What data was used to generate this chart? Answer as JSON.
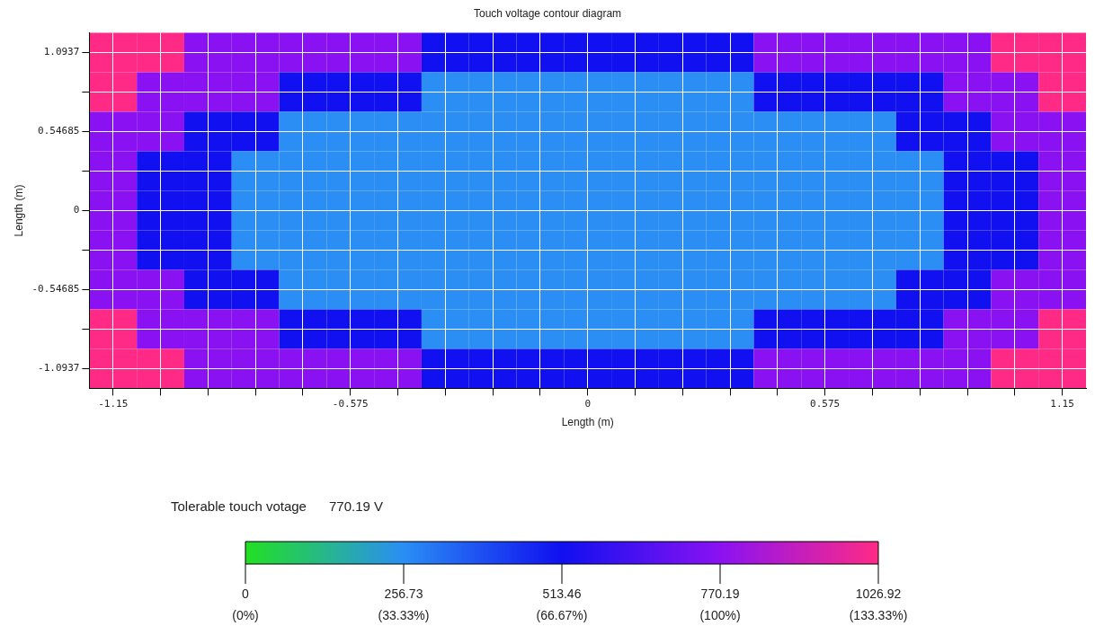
{
  "chart_data": {
    "type": "heatmap",
    "title": "Touch voltage contour diagram",
    "xlabel": "Length (m)",
    "ylabel": "Length (m)",
    "categories": [
      "-1.15",
      null,
      null,
      null,
      null,
      "-0.575",
      null,
      null,
      null,
      null,
      "0",
      null,
      null,
      null,
      null,
      "0.575",
      null,
      null,
      null,
      null,
      "1.15"
    ],
    "y_categories": [
      "1.0937",
      null,
      "0.54685",
      null,
      "0",
      null,
      "-0.54685",
      null,
      "-1.0937"
    ],
    "cells": [
      [
        1026.92,
        1026.92,
        770.19,
        770.19,
        770.19,
        770.19,
        770.19,
        513.46,
        513.46,
        513.46,
        513.46,
        513.46,
        513.46,
        513.46,
        770.19,
        770.19,
        770.19,
        770.19,
        770.19,
        1026.92,
        1026.92
      ],
      [
        1026.92,
        770.19,
        770.19,
        770.19,
        513.46,
        513.46,
        513.46,
        256.73,
        256.73,
        256.73,
        256.73,
        256.73,
        256.73,
        256.73,
        513.46,
        513.46,
        513.46,
        513.46,
        770.19,
        770.19,
        1026.92
      ],
      [
        770.19,
        770.19,
        513.46,
        513.46,
        256.73,
        256.73,
        256.73,
        256.73,
        256.73,
        256.73,
        256.73,
        256.73,
        256.73,
        256.73,
        256.73,
        256.73,
        256.73,
        513.46,
        513.46,
        770.19,
        770.19
      ],
      [
        770.19,
        513.46,
        513.46,
        256.73,
        256.73,
        256.73,
        256.73,
        256.73,
        256.73,
        256.73,
        256.73,
        256.73,
        256.73,
        256.73,
        256.73,
        256.73,
        256.73,
        256.73,
        513.46,
        513.46,
        770.19
      ],
      [
        770.19,
        513.46,
        513.46,
        256.73,
        256.73,
        256.73,
        256.73,
        256.73,
        256.73,
        256.73,
        256.73,
        256.73,
        256.73,
        256.73,
        256.73,
        256.73,
        256.73,
        256.73,
        513.46,
        513.46,
        770.19
      ],
      [
        770.19,
        513.46,
        513.46,
        256.73,
        256.73,
        256.73,
        256.73,
        256.73,
        256.73,
        256.73,
        256.73,
        256.73,
        256.73,
        256.73,
        256.73,
        256.73,
        256.73,
        256.73,
        513.46,
        513.46,
        770.19
      ],
      [
        770.19,
        770.19,
        513.46,
        513.46,
        256.73,
        256.73,
        256.73,
        256.73,
        256.73,
        256.73,
        256.73,
        256.73,
        256.73,
        256.73,
        256.73,
        256.73,
        256.73,
        513.46,
        513.46,
        770.19,
        770.19
      ],
      [
        1026.92,
        770.19,
        770.19,
        770.19,
        513.46,
        513.46,
        513.46,
        256.73,
        256.73,
        256.73,
        256.73,
        256.73,
        256.73,
        256.73,
        513.46,
        513.46,
        513.46,
        513.46,
        770.19,
        770.19,
        1026.92
      ],
      [
        1026.92,
        1026.92,
        770.19,
        770.19,
        770.19,
        770.19,
        770.19,
        513.46,
        513.46,
        513.46,
        513.46,
        513.46,
        513.46,
        513.46,
        770.19,
        770.19,
        770.19,
        770.19,
        770.19,
        1026.92,
        1026.92
      ]
    ],
    "clim": [
      0,
      1026.92
    ],
    "cticks": [
      {
        "value": 0,
        "label": "0\n(0%)"
      },
      {
        "value": 256.73,
        "label": "256.73\n(33.33%)"
      },
      {
        "value": 513.46,
        "label": "513.46\n(66.67%)"
      },
      {
        "value": 770.19,
        "label": "770.19\n(100%)"
      },
      {
        "value": 1026.92,
        "label": "1026.92\n(133.33%)"
      }
    ],
    "colors": [
      "#22e022",
      "#2a8ef4",
      "#1010f0",
      "#8a12f2",
      "#ff2a86"
    ],
    "grid": true,
    "annotations": [
      "Tolerable touch votage      770.19 V"
    ]
  }
}
